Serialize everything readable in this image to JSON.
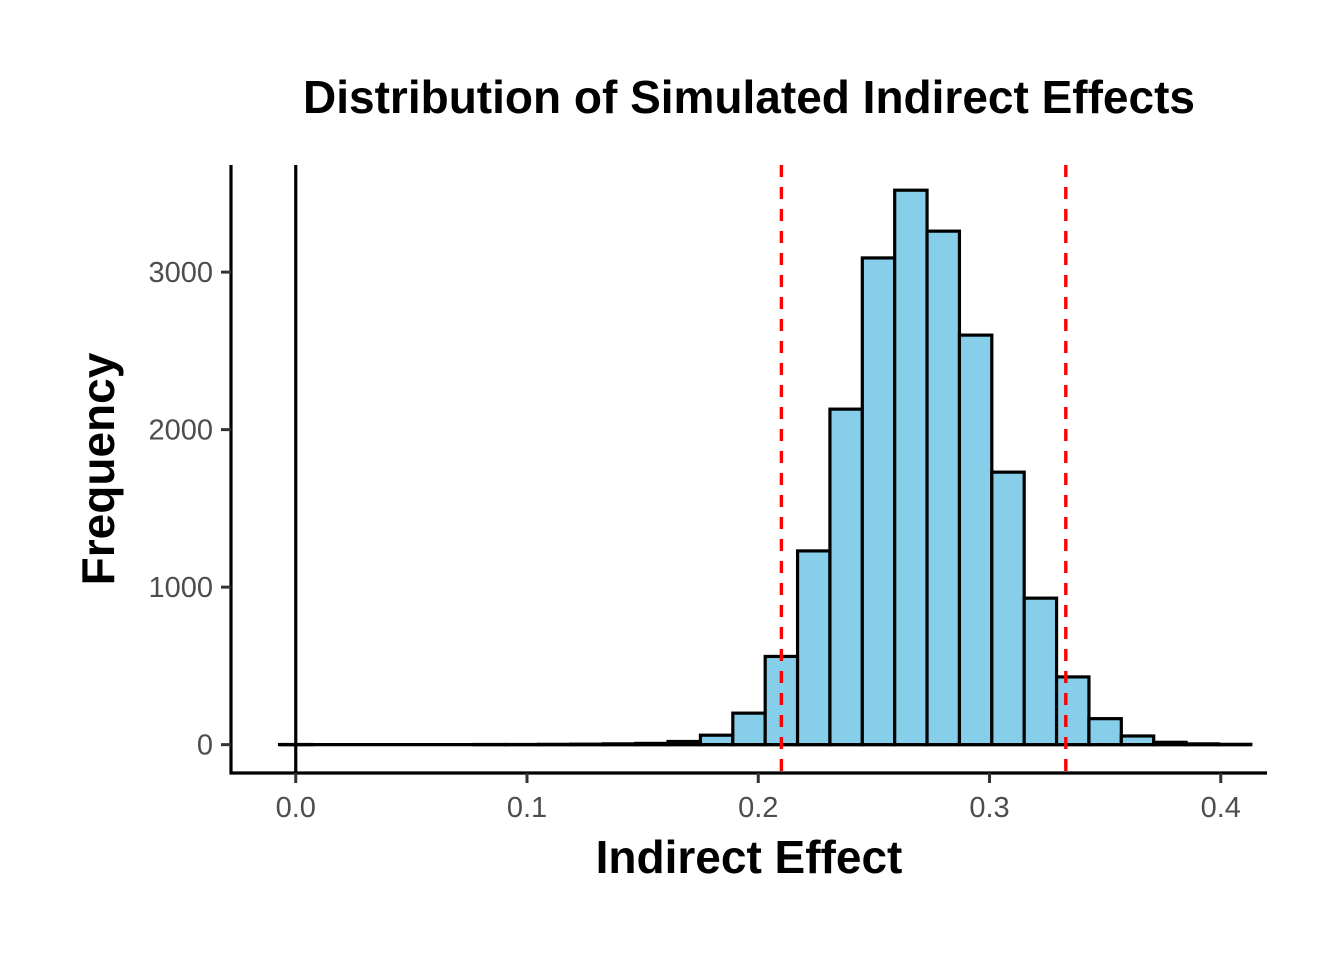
{
  "chart_data": {
    "type": "bar",
    "subtype": "histogram",
    "title": "Distribution of Simulated Indirect Effects",
    "xlabel": "Indirect Effect",
    "ylabel": "Frequency",
    "xlim": [
      -0.028,
      0.42
    ],
    "ylim": [
      -180,
      3680
    ],
    "x_ticks": [
      0.0,
      0.1,
      0.2,
      0.3,
      0.4
    ],
    "x_tick_labels": [
      "0.0",
      "0.1",
      "0.2",
      "0.3",
      "0.4"
    ],
    "y_ticks": [
      0,
      1000,
      2000,
      3000
    ],
    "y_tick_labels": [
      "0",
      "1000",
      "2000",
      "3000"
    ],
    "bin_width": 0.014,
    "bin_starts": [
      -0.007,
      0.007,
      0.021,
      0.035,
      0.049,
      0.063,
      0.077,
      0.091,
      0.105,
      0.119,
      0.133,
      0.147,
      0.161,
      0.175,
      0.189,
      0.203,
      0.217,
      0.231,
      0.245,
      0.259,
      0.273,
      0.287,
      0.301,
      0.315,
      0.329,
      0.343,
      0.357,
      0.371,
      0.385,
      0.399
    ],
    "values": [
      1,
      0,
      0,
      0,
      0,
      0,
      1,
      1,
      2,
      3,
      5,
      8,
      20,
      60,
      200,
      560,
      1230,
      2130,
      3090,
      3520,
      3260,
      2600,
      1730,
      930,
      430,
      165,
      55,
      15,
      5,
      2
    ],
    "reference_lines": [
      {
        "orientation": "vertical",
        "x": 0.0,
        "color": "#000000",
        "style": "solid"
      },
      {
        "orientation": "horizontal",
        "y": 0,
        "x_range": [
          -0.007,
          0.413
        ],
        "color": "#000000",
        "style": "solid"
      },
      {
        "orientation": "vertical",
        "x": 0.21,
        "color": "#ff0000",
        "style": "dashed"
      },
      {
        "orientation": "vertical",
        "x": 0.333,
        "color": "#ff0000",
        "style": "dashed"
      }
    ],
    "bar_fill": "#87ceeb",
    "bar_outline": "#000000",
    "grid": false,
    "legend": "none"
  }
}
